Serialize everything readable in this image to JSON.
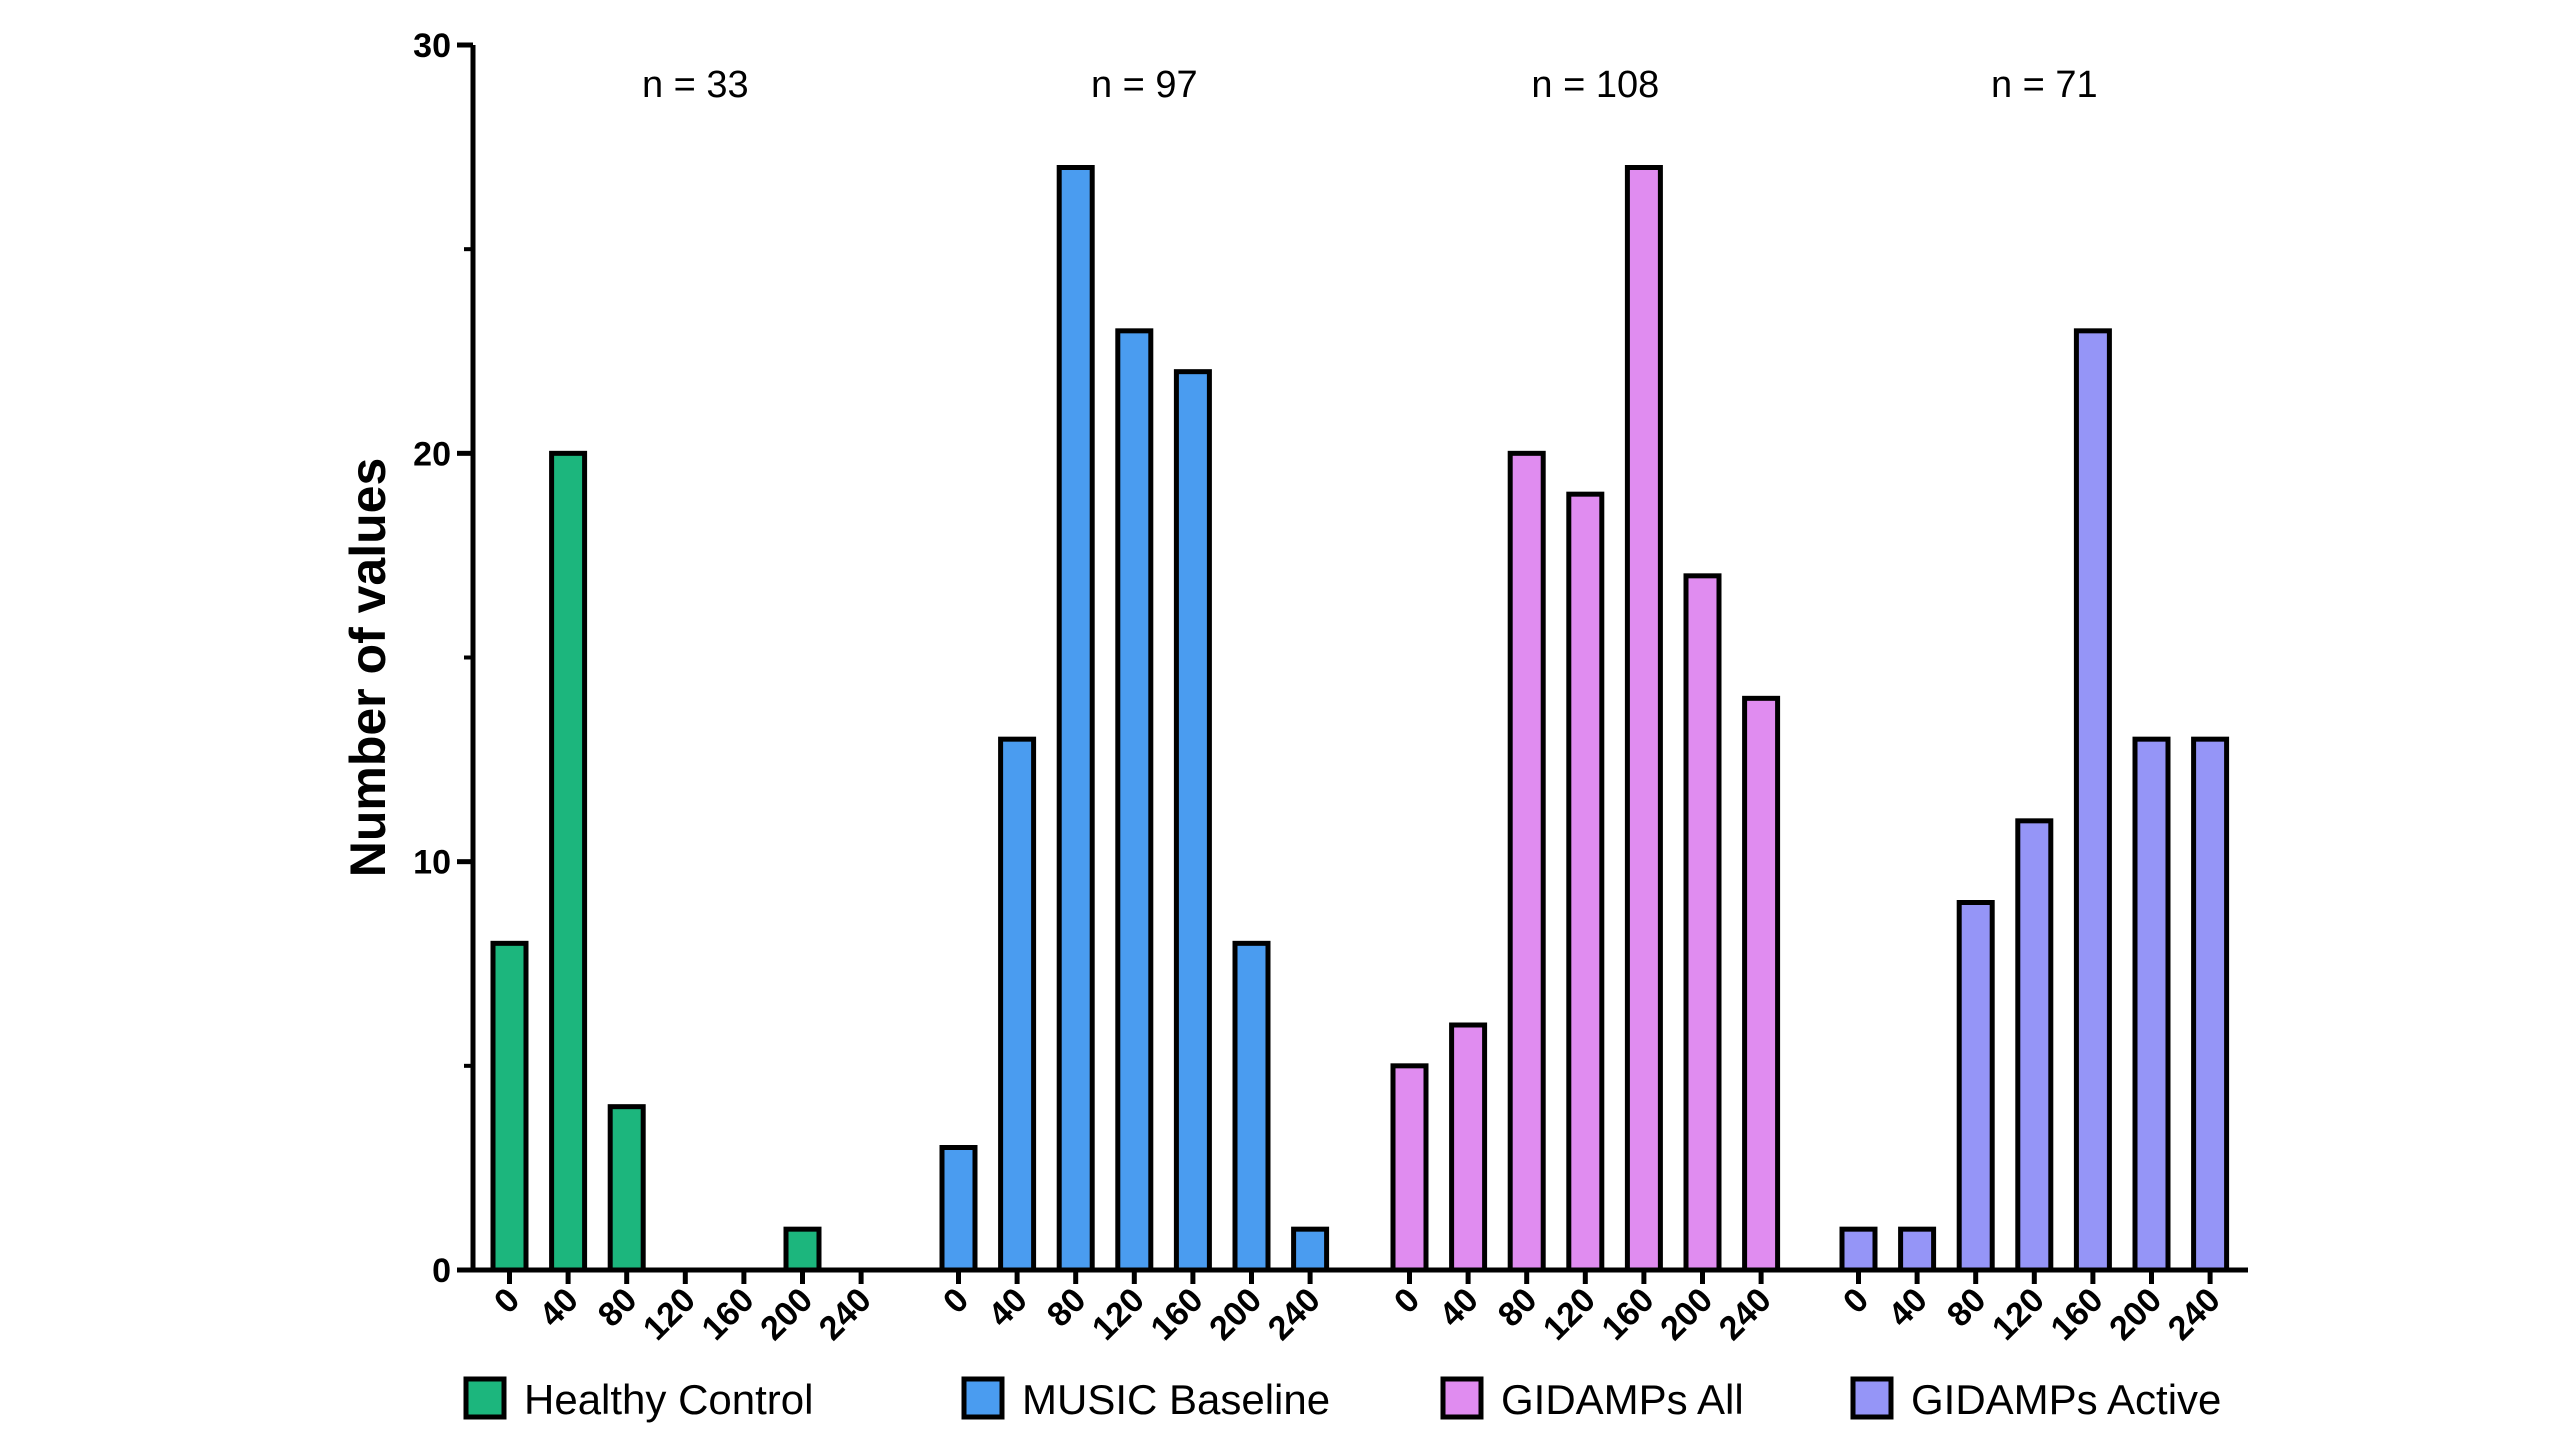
{
  "chart_data": {
    "type": "bar",
    "ylabel": "Number of values",
    "ylim": [
      0,
      30
    ],
    "yticks_labeled": [
      0,
      10,
      20,
      30
    ],
    "yticks_minor": [
      5,
      15,
      25
    ],
    "grid": false,
    "legend_position": "bottom",
    "bin_labels": [
      "0",
      "40",
      "80",
      "120",
      "160",
      "200",
      "240"
    ],
    "series": [
      {
        "name": "Healthy Control",
        "color": "#1cb67d",
        "n_label": "n = 33",
        "values": [
          8,
          20,
          4,
          0,
          0,
          1,
          0
        ]
      },
      {
        "name": "MUSIC Baseline",
        "color": "#4a9cf0",
        "n_label": "n = 97",
        "values": [
          3,
          13,
          27,
          23,
          22,
          8,
          1
        ]
      },
      {
        "name": "GIDAMPs All",
        "color": "#e08cf0",
        "n_label": "n = 108",
        "values": [
          5,
          6,
          20,
          19,
          27,
          17,
          14
        ]
      },
      {
        "name": "GIDAMPs Active",
        "color": "#9595f7",
        "n_label": "n = 71",
        "values": [
          1,
          1,
          9,
          11,
          23,
          13,
          13
        ]
      }
    ]
  }
}
